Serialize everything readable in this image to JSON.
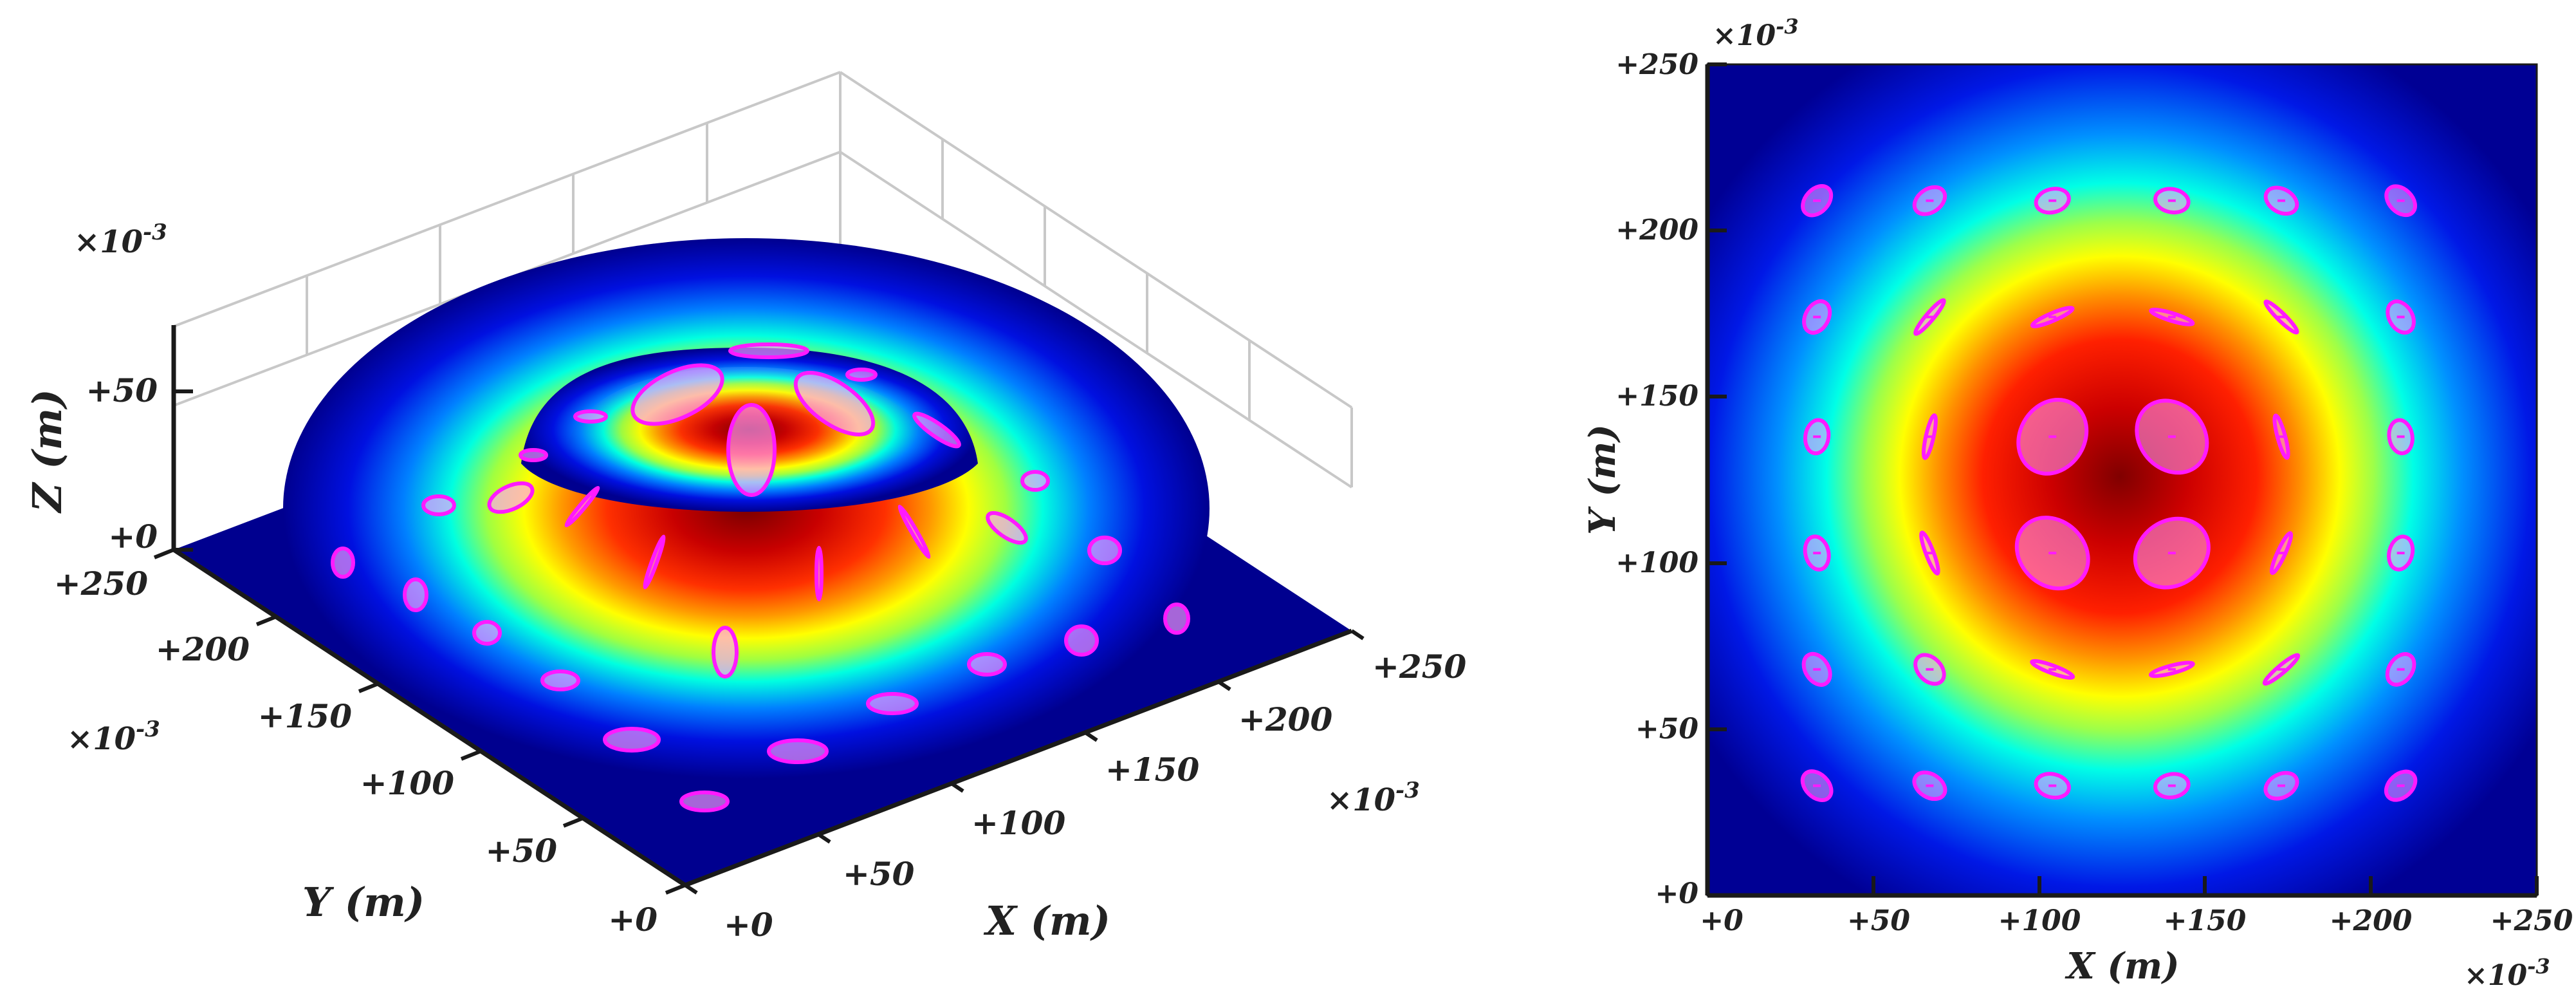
{
  "colors": {
    "surface_low": "#00008f",
    "surface_high": "#8b0000",
    "ellipse_stroke": "#ff1aff",
    "ellipse_fill": "#ffb0ff",
    "axis": "#1a1a1a",
    "grid": "#c8c8c8"
  },
  "chart_data": [
    {
      "type": "surface",
      "view": "3d",
      "xlabel": "X (m)",
      "ylabel": "Y (m)",
      "zlabel": "Z (m)",
      "x_exponent": "×10",
      "y_exponent": "×10",
      "z_exponent": "×10",
      "exponent_power": "-3",
      "xlim": [
        0,
        250
      ],
      "ylim": [
        0,
        250
      ],
      "zlim": [
        0,
        75
      ],
      "x_ticks": [
        "+0",
        "+50",
        "+100",
        "+150",
        "+200",
        "+250"
      ],
      "y_ticks": [
        "+0",
        "+50",
        "+100",
        "+150",
        "+200",
        "+250"
      ],
      "z_ticks": [
        "+0",
        "+50"
      ],
      "z_peak": 58,
      "grid": true,
      "colormap": "jet"
    },
    {
      "type": "heatmap",
      "view": "top",
      "xlabel": "X (m)",
      "ylabel": "Y (m)",
      "x_exponent": "×10",
      "y_exponent": "×10",
      "exponent_power": "-3",
      "xlim": [
        0,
        250
      ],
      "ylim": [
        0,
        250
      ],
      "x_ticks": [
        "+0",
        "+50",
        "+100",
        "+150",
        "+200",
        "+250"
      ],
      "y_ticks": [
        "+0",
        "+50",
        "+100",
        "+150",
        "+200",
        "+250"
      ],
      "center": [
        125,
        125
      ],
      "colormap": "jet",
      "ellipse_glyphs": [
        {
          "x": 33,
          "y": 209
        },
        {
          "x": 67,
          "y": 209
        },
        {
          "x": 104,
          "y": 209
        },
        {
          "x": 140,
          "y": 209
        },
        {
          "x": 173,
          "y": 209
        },
        {
          "x": 209,
          "y": 209
        },
        {
          "x": 33,
          "y": 174
        },
        {
          "x": 67,
          "y": 174
        },
        {
          "x": 104,
          "y": 174
        },
        {
          "x": 140,
          "y": 174
        },
        {
          "x": 173,
          "y": 174
        },
        {
          "x": 209,
          "y": 174
        },
        {
          "x": 33,
          "y": 138
        },
        {
          "x": 67,
          "y": 138
        },
        {
          "x": 104,
          "y": 138
        },
        {
          "x": 140,
          "y": 138
        },
        {
          "x": 173,
          "y": 138
        },
        {
          "x": 209,
          "y": 138
        },
        {
          "x": 33,
          "y": 103
        },
        {
          "x": 67,
          "y": 103
        },
        {
          "x": 104,
          "y": 103
        },
        {
          "x": 140,
          "y": 103
        },
        {
          "x": 173,
          "y": 103
        },
        {
          "x": 209,
          "y": 103
        },
        {
          "x": 33,
          "y": 68
        },
        {
          "x": 67,
          "y": 68
        },
        {
          "x": 104,
          "y": 68
        },
        {
          "x": 140,
          "y": 68
        },
        {
          "x": 173,
          "y": 68
        },
        {
          "x": 209,
          "y": 68
        },
        {
          "x": 33,
          "y": 33
        },
        {
          "x": 67,
          "y": 33
        },
        {
          "x": 104,
          "y": 33
        },
        {
          "x": 140,
          "y": 33
        },
        {
          "x": 173,
          "y": 33
        },
        {
          "x": 209,
          "y": 33
        }
      ]
    }
  ]
}
